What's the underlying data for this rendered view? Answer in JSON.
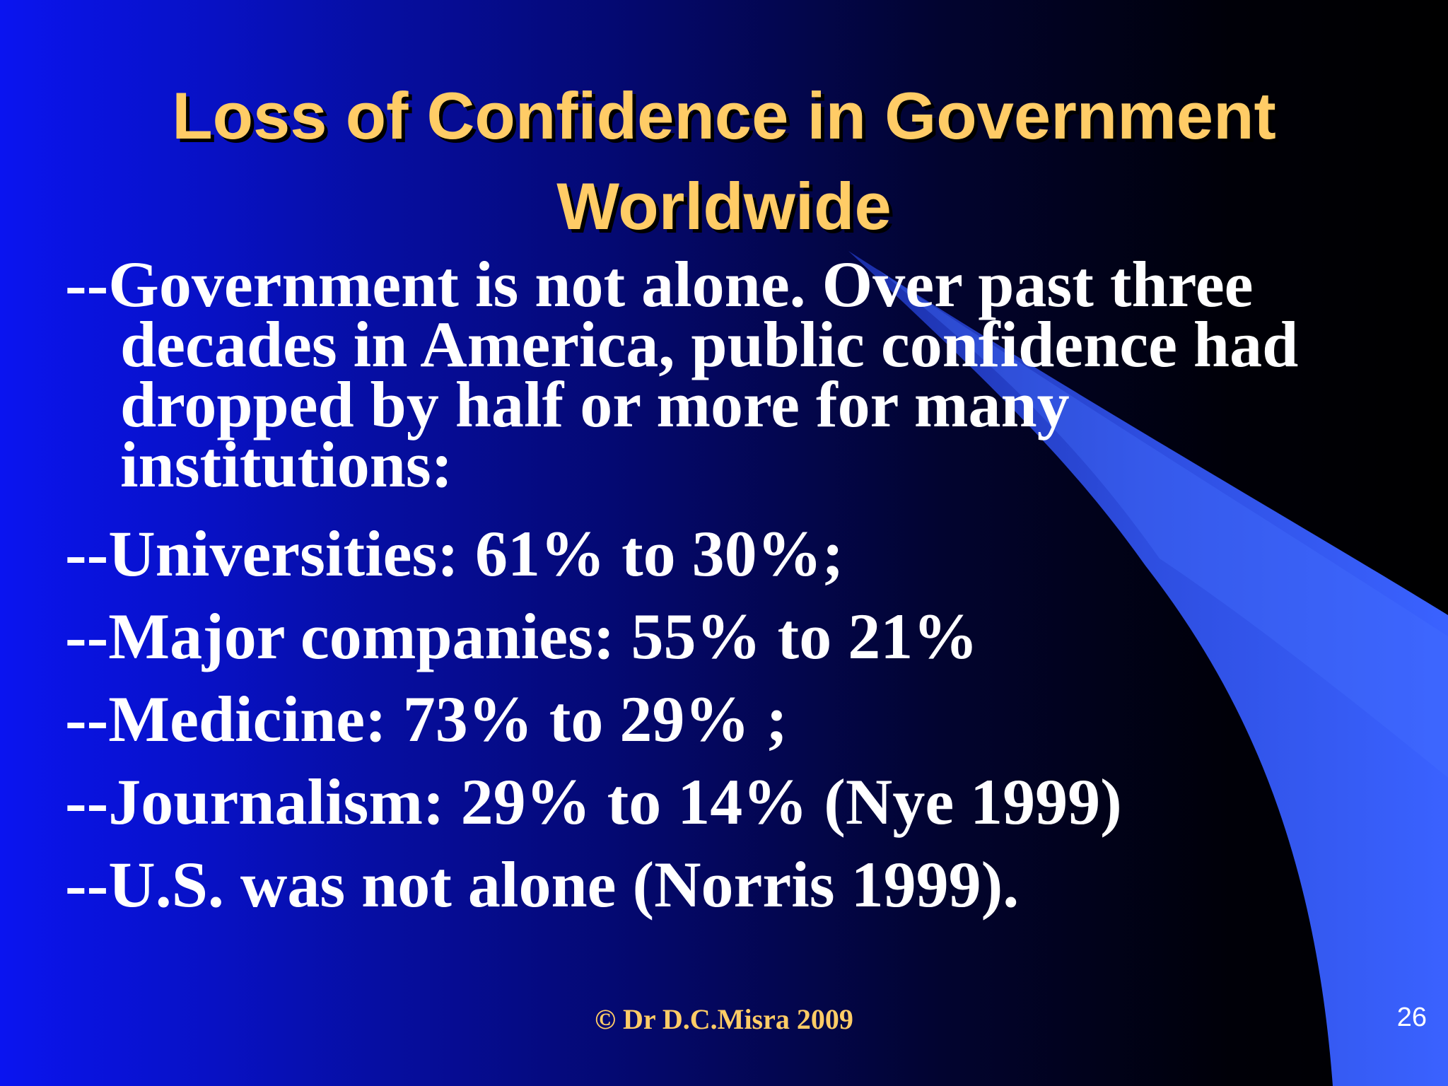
{
  "slide": {
    "title_line1": "Loss of Confidence in Government",
    "title_line2": "Worldwide",
    "intro": "--Government is not alone. Over past three decades in America, public confidence had dropped by half or more for many institutions:",
    "bullets": [
      "--Universities: 61% to 30%;",
      "--Major companies: 55% to 21%",
      "--Medicine: 73% to 29% ;",
      "--Journalism: 29% to 14% (Nye 1999)",
      "--U.S. was not alone (Norris 1999)."
    ],
    "footer": "© Dr D.C.Misra 2009",
    "slide_number": "26"
  },
  "colors": {
    "title": "#ffcc66",
    "body_text": "#ffffff",
    "footer": "#ffcc66",
    "background_left": "#0a14f0",
    "background_right": "#000000",
    "swoosh_light": "#3a5eff",
    "swoosh_dark": "#1e3ec8"
  }
}
